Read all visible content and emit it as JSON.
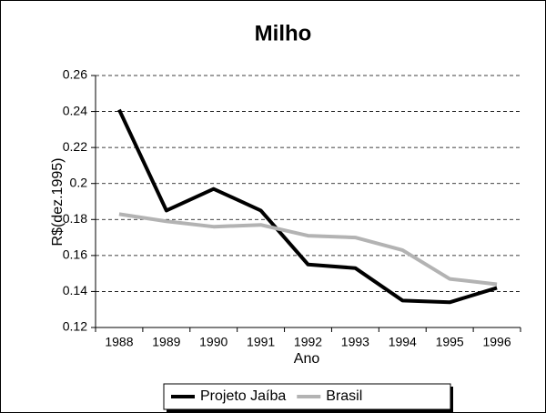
{
  "chart_data": {
    "type": "line",
    "title": "Milho",
    "x_label": "Ano",
    "y_label": "R$(dez.1995)",
    "categories": [
      "1988",
      "1989",
      "1990",
      "1991",
      "1992",
      "1993",
      "1994",
      "1995",
      "1996"
    ],
    "series": [
      {
        "name": "Projeto Jaíba",
        "color": "#000000",
        "values": [
          0.241,
          0.185,
          0.197,
          0.185,
          0.155,
          0.153,
          0.135,
          0.134,
          0.142
        ]
      },
      {
        "name": "Brasil",
        "color": "#b3b3b3",
        "values": [
          0.183,
          0.179,
          0.176,
          0.177,
          0.171,
          0.17,
          0.163,
          0.147,
          0.144
        ]
      }
    ],
    "ylim": [
      0.12,
      0.26
    ],
    "yticks": [
      0.12,
      0.14,
      0.16,
      0.18,
      0.2,
      0.22,
      0.24,
      0.26
    ],
    "grid": true,
    "legend": "bottom"
  }
}
